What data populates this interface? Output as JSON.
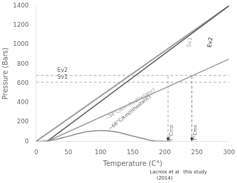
{
  "chart_data": {
    "type": "line",
    "xlabel": "Temperature (C°)",
    "ylabel": "Pressure (Bars)",
    "xlim": [
      0,
      300
    ],
    "ylim": [
      0,
      1400
    ],
    "xticks": [
      0,
      50,
      100,
      150,
      200,
      250,
      300
    ],
    "yticks": [
      0,
      200,
      400,
      600,
      800,
      1000,
      1200,
      1400
    ],
    "grid": false,
    "series": [
      {
        "color": "#888888",
        "x": [
          0,
          10,
          20,
          30,
          40,
          50,
          60,
          70,
          80,
          90,
          100,
          110,
          120,
          130,
          140,
          150,
          160,
          170,
          175,
          180,
          185,
          190,
          195,
          200,
          210
        ],
        "y": [
          0,
          2,
          8,
          18,
          35,
          52,
          70,
          88,
          100,
          108,
          112,
          110,
          102,
          90,
          72,
          55,
          38,
          22,
          14,
          8,
          4,
          2,
          1,
          0,
          0
        ]
      },
      {
        "color": "#999999",
        "x": [
          17,
          300
        ],
        "y": [
          0,
          850
        ]
      },
      {
        "color": "#555555",
        "x": [
          17,
          300
        ],
        "y": [
          0,
          1400
        ]
      },
      {
        "color": "#aaaaaa",
        "x": [
          0,
          300
        ],
        "y": [
          0,
          1400
        ]
      },
      {
        "color": "#222222",
        "x": [
          0,
          300
        ],
        "y": [
          0,
          1400
        ]
      },
      {
        "color": "#aaaaaa",
        "line_style": "dashed",
        "x": [
          0,
          300
        ],
        "y": [
          680,
          680
        ]
      },
      {
        "color": "#aaaaaa",
        "line_style": "dashed",
        "x": [
          0,
          300
        ],
        "y": [
          610,
          610
        ]
      },
      {
        "color": "#aaaaaa",
        "line_style": "dashed",
        "x": [
          205,
          205
        ],
        "y": [
          0,
          680
        ]
      },
      {
        "color": "#777777",
        "line_style": "dashed",
        "x": [
          242,
          242
        ],
        "y": [
          0,
          680
        ]
      }
    ],
    "line_labels": [
      {
        "text": "~34°C/km (hydrostatic)",
        "x": 148,
        "y": 360,
        "color": "#999999"
      },
      {
        "text": "~66°C/km(lithostatic)",
        "x": 148,
        "y": 275,
        "color": "#555555"
      },
      {
        "text": "Sv1",
        "x": 241,
        "y": 1020,
        "color": "#aaaaaa"
      },
      {
        "text": "Ev2",
        "x": 273,
        "y": 1020,
        "color": "#222222"
      }
    ],
    "level_labels": [
      {
        "text": "Ev2",
        "x": 33,
        "y": 700,
        "color": "#555555"
      },
      {
        "text": "Sv1",
        "x": 33,
        "y": 630,
        "color": "#555555"
      }
    ],
    "temperature_labels": [
      {
        "text": "T°Ccrp",
        "x": 207,
        "y": 170,
        "color": "#555555"
      },
      {
        "text": "T°Cms",
        "x": 244,
        "y": 170,
        "color": "#555555"
      }
    ],
    "arrows": [
      {
        "x": 205,
        "from": 50,
        "to": 2,
        "color": "#333333"
      },
      {
        "x": 242,
        "from": 50,
        "to": 2,
        "color": "#333333"
      }
    ],
    "captions": [
      [
        "Lacroix et al",
        "(2014)"
      ],
      [
        "this study"
      ]
    ]
  }
}
